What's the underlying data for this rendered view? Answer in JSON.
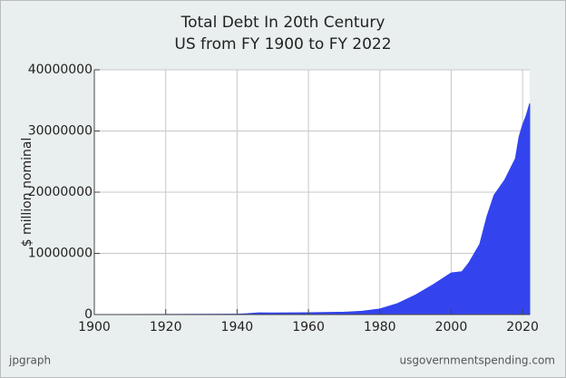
{
  "chart_data": {
    "type": "area",
    "title": "Total Debt In 20th Century",
    "subtitle": "US from FY 1900 to FY 2022",
    "y_label": "$ million nominal",
    "x": [
      1900,
      1920,
      1940,
      1943,
      1946,
      1950,
      1960,
      1970,
      1975,
      1980,
      1985,
      1990,
      1995,
      2000,
      2003,
      2005,
      2008,
      2010,
      2012,
      2015,
      2018,
      2019,
      2020,
      2021,
      2022
    ],
    "values": [
      1300,
      25000,
      50000,
      140000,
      270000,
      260000,
      290000,
      380000,
      540000,
      910000,
      1800000,
      3200000,
      4900000,
      6800000,
      7000000,
      8500000,
      11500000,
      16000000,
      19500000,
      22000000,
      25500000,
      29000000,
      31000000,
      32500000,
      34500000
    ],
    "color": "#3344ee",
    "xlim": [
      1900,
      2022
    ],
    "xticks": [
      1900,
      1920,
      1940,
      1960,
      1980,
      2000,
      2020
    ],
    "ylim": [
      0,
      40000000
    ],
    "yticks": [
      0,
      10000000,
      20000000,
      30000000,
      40000000
    ],
    "grid": true,
    "footer_left": "jpgraph",
    "footer_right": "usgovernmentspending.com"
  }
}
